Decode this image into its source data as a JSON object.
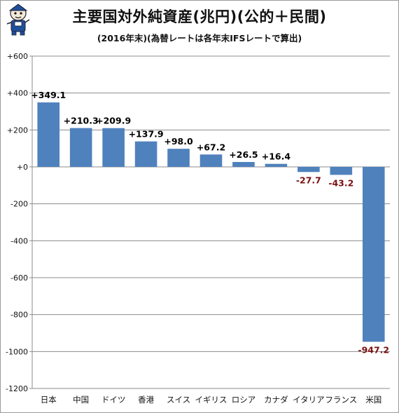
{
  "chart_data": {
    "type": "bar",
    "title": "主要国対外純資産(兆円)(公的＋民間)",
    "subtitle": "(2016年末)(為替レートは各年末IFSレートで算出)",
    "categories": [
      "日本",
      "中国",
      "ドイツ",
      "香港",
      "スイス",
      "イギリス",
      "ロシア",
      "カナダ",
      "イタリア",
      "フランス",
      "米国"
    ],
    "values": [
      349.1,
      210.3,
      209.9,
      137.9,
      98.0,
      67.2,
      26.5,
      16.4,
      -27.7,
      -43.2,
      -947.2
    ],
    "data_labels": [
      "+349.1",
      "+210.3",
      "+209.9",
      "+137.9",
      "+98.0",
      "+67.2",
      "+26.5",
      "+16.4",
      "-27.7",
      "-43.2",
      "-947.2"
    ],
    "y_ticks": [
      600,
      400,
      200,
      0,
      -200,
      -400,
      -600,
      -800,
      -1000,
      -1200
    ],
    "y_tick_labels": [
      "+600",
      "+400",
      "+200",
      "+0",
      "-200",
      "-400",
      "-600",
      "-800",
      "-1000",
      "-1200"
    ],
    "ylim": [
      -1200,
      600
    ],
    "grid": true,
    "legend": "none",
    "bar_color": "#4f81bd",
    "positive_label_color": "#000000",
    "negative_label_color": "#7b1010"
  }
}
